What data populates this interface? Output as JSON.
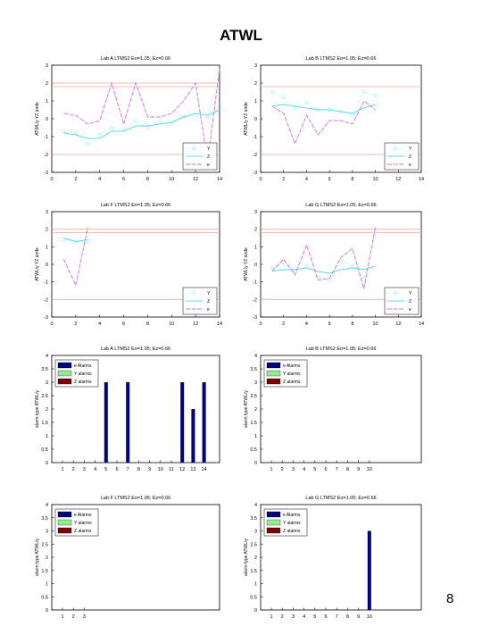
{
  "page": {
    "title": "ATWL",
    "page_number": "8"
  },
  "colors": {
    "Y": "#b8f0f8",
    "Z": "#5ed8f0",
    "e": "#d070e0",
    "threshold": "#f0a8a0",
    "e_alarm": "#000080",
    "y_alarm": "#90ee90",
    "z_alarm": "#800000"
  },
  "chart_data": [
    {
      "type": "line",
      "title": "Lab A LTMS2 Eo=1.05; Ez=0.66",
      "xlabel": "",
      "ylabel": "ATWL/y YZ ande",
      "xlim": [
        0,
        14
      ],
      "ylim": [
        -3,
        3
      ],
      "xticks": [
        0,
        2,
        4,
        6,
        8,
        10,
        12,
        14
      ],
      "yticks": [
        -3,
        -2,
        -1,
        0,
        1,
        2,
        3
      ],
      "thresholds": [
        2,
        -2,
        1.8
      ],
      "legend": [
        "Y",
        "Z",
        "e"
      ],
      "x": [
        1,
        2,
        3,
        4,
        5,
        6,
        7,
        8,
        9,
        10,
        11,
        12,
        13,
        14
      ],
      "series": [
        {
          "name": "Y",
          "values": [
            -0.7,
            -0.8,
            -1.4,
            -0.9,
            -0.5,
            -0.6,
            -0.1,
            -0.5,
            -0.2,
            -0.3,
            0.1,
            0.2,
            0.1,
            2.6
          ]
        },
        {
          "name": "Z",
          "values": [
            -0.8,
            -0.9,
            -1.1,
            -1.1,
            -0.7,
            -0.7,
            -0.4,
            -0.4,
            -0.3,
            -0.2,
            0.1,
            0.3,
            0.2,
            0.5
          ]
        },
        {
          "name": "e",
          "values": [
            0.3,
            0.2,
            -0.3,
            -0.1,
            2.0,
            -0.3,
            2.0,
            0.1,
            0.1,
            0.3,
            1.0,
            2.0,
            -2.4,
            2.8
          ]
        }
      ]
    },
    {
      "type": "line",
      "title": "Lab B LTMS2 Eo=1.05; Ez=0.66",
      "xlabel": "",
      "ylabel": "ATWL/y YZ ande",
      "xlim": [
        0,
        14
      ],
      "ylim": [
        -3,
        3
      ],
      "xticks": [
        0,
        2,
        4,
        6,
        8,
        10,
        12,
        14
      ],
      "yticks": [
        -3,
        -2,
        -1,
        0,
        1,
        2,
        3
      ],
      "thresholds": [
        1.8,
        -2
      ],
      "legend": [
        "Y",
        "Z",
        "e"
      ],
      "x": [
        1,
        2,
        3,
        4,
        5,
        6,
        7,
        8,
        9,
        10
      ],
      "series": [
        {
          "name": "Y",
          "values": [
            1.5,
            1.2,
            0.6,
            0.9,
            0.5,
            0.5,
            0.4,
            0.2,
            1.5,
            1.3
          ]
        },
        {
          "name": "Z",
          "values": [
            0.7,
            0.8,
            0.7,
            0.6,
            0.5,
            0.5,
            0.4,
            0.3,
            0.6,
            0.8
          ]
        },
        {
          "name": "e",
          "values": [
            0.7,
            0.3,
            -1.4,
            0.2,
            -0.9,
            -0.1,
            -0.1,
            -0.3,
            1.0,
            0.5
          ]
        }
      ]
    },
    {
      "type": "line",
      "title": "Lab F LTMS2 Eo=1.05; Ez=0.66",
      "xlabel": "",
      "ylabel": "ATWL/y YZ ande",
      "xlim": [
        0,
        14
      ],
      "ylim": [
        -3,
        3
      ],
      "xticks": [
        0,
        2,
        4,
        6,
        8,
        10,
        12,
        14
      ],
      "yticks": [
        -3,
        -2,
        -1,
        0,
        1,
        2,
        3
      ],
      "thresholds": [
        2,
        1.8,
        -2
      ],
      "legend": [
        "Y",
        "Z",
        "e"
      ],
      "x": [
        1,
        2,
        3
      ],
      "series": [
        {
          "name": "Y",
          "values": [
            1.4,
            1.3,
            1.3
          ]
        },
        {
          "name": "Z",
          "values": [
            1.5,
            1.3,
            1.4
          ]
        },
        {
          "name": "e",
          "values": [
            0.3,
            -1.2,
            2.1
          ]
        }
      ]
    },
    {
      "type": "line",
      "title": "Lab G LTMS2 Eo=1.05; Ez=0.66",
      "xlabel": "",
      "ylabel": "ATWL/y YZ ande",
      "xlim": [
        0,
        14
      ],
      "ylim": [
        -3,
        3
      ],
      "xticks": [
        0,
        2,
        4,
        6,
        8,
        10,
        12,
        14
      ],
      "yticks": [
        -3,
        -2,
        -1,
        0,
        1,
        2,
        3
      ],
      "thresholds": [
        2,
        1.8,
        -2
      ],
      "legend": [
        "Y",
        "Z",
        "e"
      ],
      "x": [
        1,
        2,
        3,
        4,
        5,
        6,
        7,
        8,
        9,
        10
      ],
      "series": [
        {
          "name": "Y",
          "values": [
            -0.2,
            0.1,
            -0.4,
            -0.1,
            -0.7,
            -0.9,
            0.2,
            -0.1,
            -0.8,
            1.8
          ]
        },
        {
          "name": "Z",
          "values": [
            -0.4,
            -0.3,
            -0.3,
            -0.2,
            -0.4,
            -0.5,
            -0.3,
            -0.2,
            -0.3,
            -0.1
          ]
        },
        {
          "name": "e",
          "values": [
            -0.4,
            0.3,
            -0.6,
            1.1,
            -0.9,
            -0.8,
            0.4,
            0.9,
            -1.4,
            2.1
          ]
        }
      ]
    },
    {
      "type": "bar",
      "title": "Lab A LTMS2 Eo=1.05; Ez=0.66",
      "xlabel": "",
      "ylabel": "alarm type ATWL/y",
      "categories": [
        "1",
        "2",
        "3",
        "4",
        "5",
        "6",
        "7",
        "8",
        "9",
        "10",
        "11",
        "12",
        "13",
        "14"
      ],
      "ylim": [
        0,
        4
      ],
      "yticks": [
        0,
        0.5,
        1,
        1.5,
        2,
        2.5,
        3,
        3.5,
        4
      ],
      "legend": [
        "e Alarms",
        "Y alarms",
        "Z alarms"
      ],
      "series": [
        {
          "name": "e Alarms",
          "values": [
            0,
            0,
            0,
            0,
            3,
            0,
            3,
            0,
            0,
            0,
            0,
            3,
            2,
            3
          ]
        },
        {
          "name": "Y alarms",
          "values": [
            0,
            0,
            0,
            0,
            0,
            0,
            0,
            0,
            0,
            0,
            0,
            0,
            0,
            0
          ]
        },
        {
          "name": "Z alarms",
          "values": [
            0,
            0,
            0,
            0,
            0,
            0,
            0,
            0,
            0,
            0,
            0,
            0,
            0,
            0
          ]
        }
      ]
    },
    {
      "type": "bar",
      "title": "Lab B LTMS2 Eo=1.05; Ez=0.66",
      "xlabel": "",
      "ylabel": "alarm type ATWL/y",
      "categories": [
        "1",
        "2",
        "3",
        "4",
        "5",
        "6",
        "7",
        "8",
        "9",
        "10"
      ],
      "ylim": [
        0,
        4
      ],
      "yticks": [
        0,
        0.5,
        1,
        1.5,
        2,
        2.5,
        3,
        3.5,
        4
      ],
      "legend": [
        "e Alarms",
        "Y alarms",
        "Z alarms"
      ],
      "series": [
        {
          "name": "e Alarms",
          "values": [
            0,
            0,
            0,
            0,
            0,
            0,
            0,
            0,
            0,
            0
          ]
        },
        {
          "name": "Y alarms",
          "values": [
            0,
            0,
            0,
            0,
            0,
            0,
            0,
            0,
            0,
            0
          ]
        },
        {
          "name": "Z alarms",
          "values": [
            0,
            0,
            0,
            0,
            0,
            0,
            0,
            0,
            0,
            0
          ]
        }
      ]
    },
    {
      "type": "bar",
      "title": "Lab F LTMS2 Eo=1.05; Ez=0.66",
      "xlabel": "",
      "ylabel": "alarm type ATWL/y",
      "categories": [
        "1",
        "2",
        "3"
      ],
      "ylim": [
        0,
        4
      ],
      "yticks": [
        0,
        0.5,
        1,
        1.5,
        2,
        2.5,
        3,
        3.5,
        4
      ],
      "legend": [
        "e Alarms",
        "Y alarms",
        "Z alarms"
      ],
      "series": [
        {
          "name": "e Alarms",
          "values": [
            0,
            0,
            0
          ]
        },
        {
          "name": "Y alarms",
          "values": [
            0,
            0,
            0
          ]
        },
        {
          "name": "Z alarms",
          "values": [
            0,
            0,
            0
          ]
        }
      ]
    },
    {
      "type": "bar",
      "title": "Lab G LTMS2 Eo=1.05; Ez=0.66",
      "xlabel": "",
      "ylabel": "alarm type ATWL/y",
      "categories": [
        "1",
        "2",
        "3",
        "4",
        "5",
        "6",
        "7",
        "8",
        "9",
        "10"
      ],
      "ylim": [
        0,
        4
      ],
      "yticks": [
        0,
        0.5,
        1,
        1.5,
        2,
        2.5,
        3,
        3.5,
        4
      ],
      "legend": [
        "e Alarms",
        "Y alarms",
        "Z alarms"
      ],
      "series": [
        {
          "name": "e Alarms",
          "values": [
            0,
            0,
            0,
            0,
            0,
            0,
            0,
            0,
            0,
            3
          ]
        },
        {
          "name": "Y alarms",
          "values": [
            0,
            0,
            0,
            0,
            0,
            0,
            0,
            0,
            0,
            0
          ]
        },
        {
          "name": "Z alarms",
          "values": [
            0,
            0,
            0,
            0,
            0,
            0,
            0,
            0,
            0,
            0
          ]
        }
      ]
    }
  ]
}
